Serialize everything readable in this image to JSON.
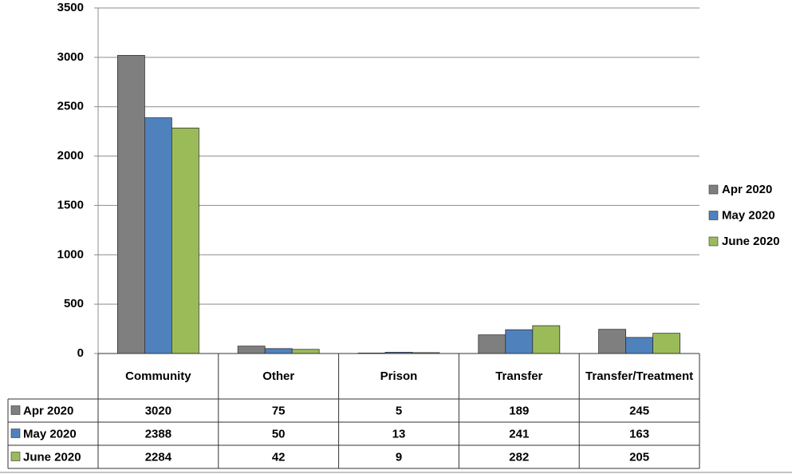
{
  "chart_data": {
    "type": "bar",
    "categories": [
      "Community",
      "Other",
      "Prison",
      "Transfer",
      "Transfer/Treatment"
    ],
    "series": [
      {
        "name": "Apr 2020",
        "color": "#7f7f7f",
        "values": [
          3020,
          75,
          5,
          189,
          245
        ]
      },
      {
        "name": "May 2020",
        "color": "#4f81bd",
        "values": [
          2388,
          50,
          13,
          241,
          163
        ]
      },
      {
        "name": "June 2020",
        "color": "#9bbb59",
        "values": [
          2284,
          42,
          9,
          282,
          205
        ]
      }
    ],
    "ylim": [
      0,
      3500
    ],
    "yticks": [
      0,
      500,
      1000,
      1500,
      2000,
      2500,
      3000,
      3500
    ],
    "grid": true,
    "legend": "right"
  }
}
